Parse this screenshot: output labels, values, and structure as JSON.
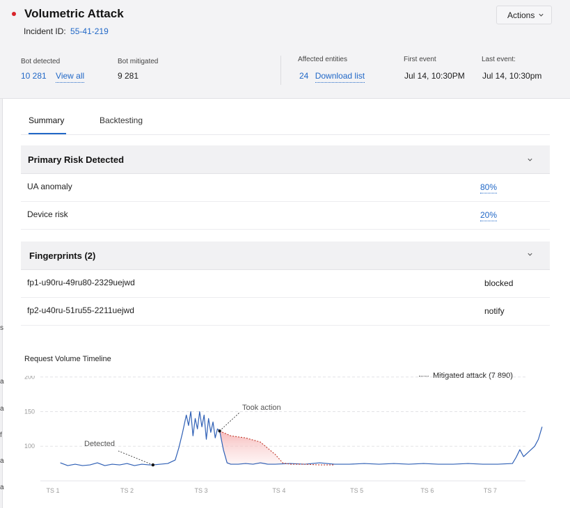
{
  "header": {
    "title": "Volumetric Attack",
    "incident_label": "Incident ID:",
    "incident_id": "55-41-219",
    "actions_label": "Actions"
  },
  "stats": {
    "bot_detected_label": "Bot detected",
    "bot_detected_value": "10 281",
    "view_all": "View all",
    "bot_mitigated_label": "Bot mitigated",
    "bot_mitigated_value": "9 281",
    "affected_label": "Affected entities",
    "affected_value": "24",
    "download_list": "Download list",
    "first_event_label": "First event",
    "first_event_value": "Jul 14, 10:30PM",
    "last_event_label": "Last event:",
    "last_event_value": "Jul 14, 10:30pm"
  },
  "tabs": [
    {
      "label": "Summary",
      "active": true
    },
    {
      "label": "Backtesting",
      "active": false
    }
  ],
  "primary_risk": {
    "title": "Primary Risk Detected",
    "rows": [
      {
        "name": "UA anomaly",
        "value": "80%"
      },
      {
        "name": "Device risk",
        "value": "20%"
      }
    ]
  },
  "fingerprints": {
    "title": "Fingerprints (2)",
    "rows": [
      {
        "id": "fp1-u90ru-49ru80-2329uejwd",
        "action": "blocked"
      },
      {
        "id": "fp2-u40ru-51ru55-2211uejwd",
        "action": "notify"
      }
    ]
  },
  "left_edge_chars": [
    "s",
    "a",
    "a",
    "f",
    "a",
    "a"
  ],
  "chart_data": {
    "type": "line",
    "title": "Request Volume Timeline",
    "legend": "Mitigated attack (7 890)",
    "y_ticks": [
      "200",
      "150",
      "100"
    ],
    "x_ticks": [
      "TS 1",
      "TS 2",
      "TS 3",
      "TS 4",
      "TS 5",
      "TS 6",
      "TS 7"
    ],
    "ylim": [
      60,
      200
    ],
    "grid": true,
    "annotations": [
      {
        "label": "Detected",
        "x": 2.35,
        "y": 73
      },
      {
        "label": "Took action",
        "x": 3.25,
        "y": 122
      }
    ],
    "series": [
      {
        "color": "#2e5fb5",
        "x": [
          1.1,
          1.2,
          1.3,
          1.4,
          1.5,
          1.6,
          1.7,
          1.8,
          1.9,
          2.0,
          2.1,
          2.2,
          2.3,
          2.35,
          2.45,
          2.55,
          2.65,
          2.7,
          2.75,
          2.8,
          2.83,
          2.86,
          2.89,
          2.92,
          2.95,
          2.98,
          3.01,
          3.04,
          3.07,
          3.1,
          3.13,
          3.16,
          3.19,
          3.22,
          3.25,
          3.3,
          3.35,
          3.4,
          3.5,
          3.6,
          3.7,
          3.8,
          3.9,
          4.0,
          4.2,
          4.4,
          4.6,
          4.8,
          5.0,
          5.2,
          5.4,
          5.6,
          5.8,
          6.0,
          6.2,
          6.4,
          6.6,
          6.8,
          7.0,
          7.2,
          7.25,
          7.3,
          7.35,
          7.4,
          7.45,
          7.5,
          7.55,
          7.6
        ],
        "y": [
          76,
          72,
          74,
          72,
          73,
          76,
          72,
          74,
          73,
          75,
          72,
          74,
          73,
          73,
          74,
          75,
          80,
          98,
          120,
          145,
          130,
          150,
          115,
          140,
          125,
          150,
          128,
          145,
          110,
          140,
          120,
          135,
          112,
          125,
          122,
          95,
          76,
          74,
          74,
          75,
          74,
          76,
          74,
          74,
          75,
          74,
          76,
          74,
          74,
          75,
          74,
          75,
          74,
          75,
          74,
          74,
          75,
          74,
          74,
          75,
          84,
          95,
          85,
          90,
          95,
          100,
          110,
          128
        ]
      },
      {
        "color": "#c0392b",
        "dashed": true,
        "x": [
          3.25,
          3.4,
          3.6,
          3.8,
          4.0,
          4.1,
          4.2,
          4.4,
          4.6,
          4.8
        ],
        "y": [
          122,
          115,
          112,
          106,
          88,
          76,
          74,
          74,
          73,
          73
        ]
      }
    ]
  }
}
